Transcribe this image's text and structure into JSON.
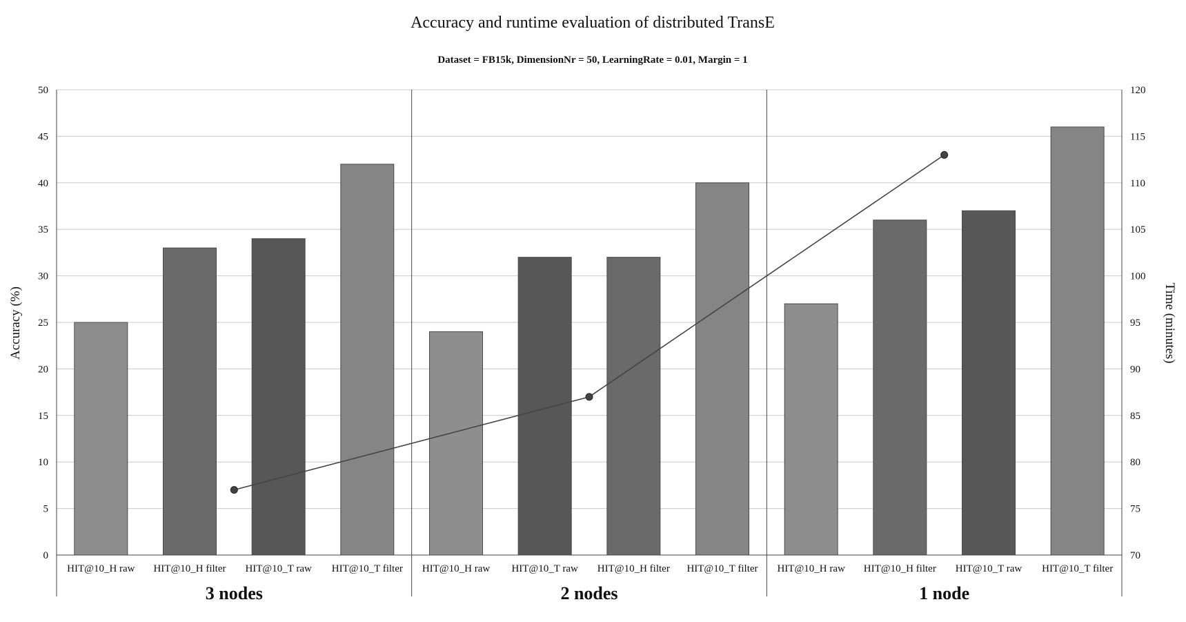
{
  "chart_data": {
    "type": "bar",
    "title": "Accuracy and runtime evaluation of distributed TransE",
    "subtitle": "Dataset = FB15k, DimensionNr = 50, LearningRate = 0.01, Margin = 1",
    "ylabel": "Accuracy (%)",
    "y2label": "Time (minutes)",
    "ylim": [
      0,
      50
    ],
    "y2lim": [
      70,
      120
    ],
    "yticks": [
      "0",
      "5",
      "10",
      "15",
      "20",
      "25",
      "30",
      "35",
      "40",
      "45",
      "50"
    ],
    "y2ticks": [
      "70",
      "75",
      "80",
      "85",
      "90",
      "95",
      "100",
      "105",
      "110",
      "115",
      "120"
    ],
    "grid": true,
    "groups": [
      {
        "name": "3 nodes",
        "bars": [
          {
            "label": "HIT@10_H raw",
            "value": 25,
            "color": "#8e8e8e"
          },
          {
            "label": "HIT@10_H filter",
            "value": 33,
            "color": "#6a6a6a"
          },
          {
            "label": "HIT@10_T raw",
            "value": 34,
            "color": "#575757"
          },
          {
            "label": "HIT@10_T filter",
            "value": 42,
            "color": "#858585"
          }
        ],
        "time": 77
      },
      {
        "name": "2 nodes",
        "bars": [
          {
            "label": "HIT@10_H raw",
            "value": 24,
            "color": "#8e8e8e"
          },
          {
            "label": "HIT@10_T raw",
            "value": 32,
            "color": "#575757"
          },
          {
            "label": "HIT@10_H filter",
            "value": 32,
            "color": "#6a6a6a"
          },
          {
            "label": "HIT@10_T filter",
            "value": 40,
            "color": "#858585"
          }
        ],
        "time": 87
      },
      {
        "name": "1 node",
        "bars": [
          {
            "label": "HIT@10_H raw",
            "value": 27,
            "color": "#8e8e8e"
          },
          {
            "label": "HIT@10_H filter",
            "value": 36,
            "color": "#6a6a6a"
          },
          {
            "label": "HIT@10_T raw",
            "value": 37,
            "color": "#575757"
          },
          {
            "label": "HIT@10_T filter",
            "value": 46,
            "color": "#858585"
          }
        ],
        "time": 113
      }
    ],
    "line_color": "#444444"
  }
}
